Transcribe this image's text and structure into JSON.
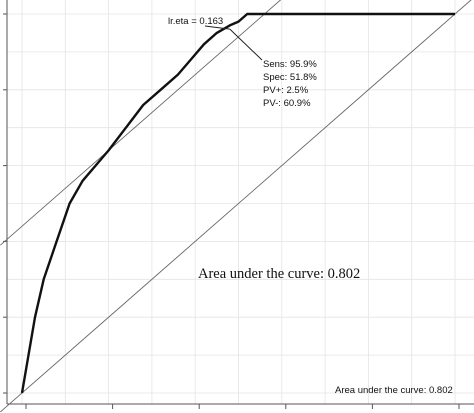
{
  "chart_data": {
    "type": "line",
    "title": "",
    "xlabel": "",
    "ylabel": "",
    "xlim": [
      0,
      1
    ],
    "ylim": [
      0,
      1
    ],
    "grid": true,
    "series": [
      {
        "x": [
          0.0,
          0.015,
          0.03,
          0.05,
          0.08,
          0.11,
          0.14,
          0.17,
          0.2,
          0.24,
          0.28,
          0.32,
          0.36,
          0.39,
          0.42,
          0.45,
          0.48,
          0.5,
          0.52,
          0.6,
          0.7,
          0.8,
          0.9,
          1.0
        ],
        "y": [
          0.0,
          0.1,
          0.2,
          0.3,
          0.4,
          0.5,
          0.56,
          0.6,
          0.64,
          0.7,
          0.76,
          0.8,
          0.84,
          0.88,
          0.92,
          0.95,
          0.97,
          0.98,
          1.0,
          1.0,
          1.0,
          1.0,
          1.0,
          1.0
        ]
      }
    ],
    "reference_lines": [
      {
        "kind": "diagonal",
        "slope": 1,
        "intercept": 0
      },
      {
        "kind": "tangent",
        "slope": 1,
        "intercept": 0.44
      }
    ],
    "optimal_point": {
      "x": 0.48,
      "y": 0.96,
      "threshold_label": "lr.eta = 0.163",
      "stats": [
        "Sens: 95.9%",
        "Spec: 51.8%",
        "PV+: 2.5%",
        "PV-: 60.9%"
      ]
    },
    "annotations": [
      "Area under the curve: 0.802",
      "Area under the curve: 0.802"
    ]
  }
}
